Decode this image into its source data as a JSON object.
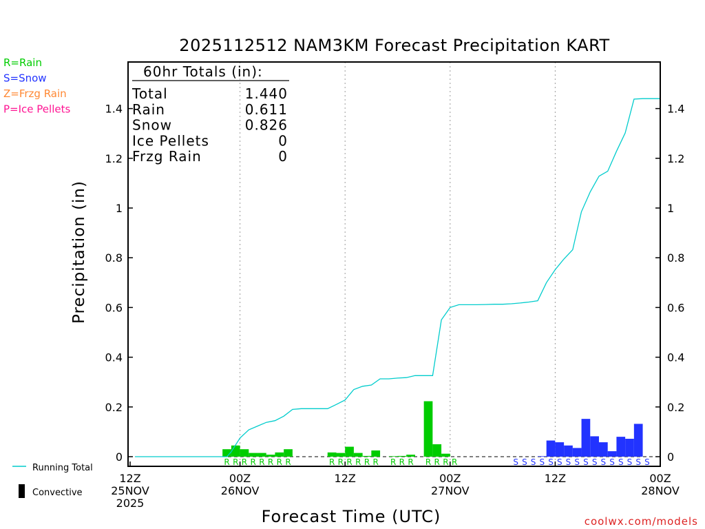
{
  "chart_data": {
    "type": "bar",
    "title": "2025112512 NAM3KM Forecast Precipitation KART",
    "xlabel": "Forecast Time (UTC)",
    "ylabel": "Precipitation (in)",
    "ylim": [
      -0.04,
      1.6
    ],
    "xlim": [
      0,
      60
    ],
    "yticks": [
      "0",
      "0.2",
      "0.4",
      "0.6",
      "0.8",
      "1",
      "1.2",
      "1.4"
    ],
    "yticks_right": [
      "0",
      "0.2",
      "0.4",
      "0.6",
      "0.8",
      "1",
      "1.2",
      "1.4"
    ],
    "ytick_values": [
      0,
      0.2,
      0.4,
      0.6,
      0.8,
      1.0,
      1.2,
      1.4
    ],
    "xticks": [
      {
        "hour": 0,
        "line1": "12Z",
        "line2": "25NOV",
        "line3": "2025"
      },
      {
        "hour": 12,
        "line1": "00Z",
        "line2": "26NOV",
        "line3": ""
      },
      {
        "hour": 24,
        "line1": "12Z",
        "line2": "",
        "line3": ""
      },
      {
        "hour": 36,
        "line1": "00Z",
        "line2": "27NOV",
        "line3": ""
      },
      {
        "hour": 48,
        "line1": "12Z",
        "line2": "",
        "line3": ""
      },
      {
        "hour": 60,
        "line1": "00Z",
        "line2": "28NOV",
        "line3": ""
      }
    ],
    "gridlines_hours": [
      12,
      24,
      36,
      48
    ],
    "legend_top": [
      {
        "label": "R=Rain",
        "color": "#00cc00"
      },
      {
        "label": "S=Snow",
        "color": "#2233ff"
      },
      {
        "label": "Z=Frzg Rain",
        "color": "#ff8833"
      },
      {
        "label": "P=Ice Pellets",
        "color": "#ff1493"
      }
    ],
    "legend_bottom": [
      {
        "label": "Running Total",
        "color": "#00cccc",
        "kind": "line"
      },
      {
        "label": "Convective",
        "color": "#000000",
        "kind": "bar"
      }
    ],
    "totals": {
      "header": "60hr Totals (in):",
      "rows": [
        {
          "label": "Total",
          "value": "1.440"
        },
        {
          "label": "Rain",
          "value": "0.611"
        },
        {
          "label": "Snow",
          "value": "0.826"
        },
        {
          "label": "Ice Pellets",
          "value": "0"
        },
        {
          "label": "Frzg Rain",
          "value": "0"
        }
      ]
    },
    "series": [
      {
        "name": "Rain",
        "color": "#00cc00",
        "type_letter": "R",
        "x": [
          11,
          12,
          13,
          14,
          15,
          16,
          17,
          18,
          23,
          24,
          25,
          26,
          27,
          28,
          30,
          31,
          32,
          34,
          35,
          36,
          37
        ],
        "values": [
          0.03,
          0.045,
          0.03,
          0.015,
          0.015,
          0.008,
          0.017,
          0.03,
          0.017,
          0.015,
          0.04,
          0.015,
          0.003,
          0.025,
          0.002,
          0.003,
          0.008,
          0.223,
          0.05,
          0.012,
          0.0
        ]
      },
      {
        "name": "Snow",
        "color": "#2233ff",
        "type_letter": "S",
        "x": [
          44,
          45,
          46,
          47,
          48,
          49,
          50,
          51,
          52,
          53,
          54,
          55,
          56,
          57,
          58,
          59
        ],
        "values": [
          0.0,
          0.0,
          0.0,
          0.002,
          0.065,
          0.058,
          0.045,
          0.035,
          0.152,
          0.082,
          0.058,
          0.022,
          0.08,
          0.072,
          0.132,
          0.0
        ]
      },
      {
        "name": "Running Total",
        "color": "#00cccc",
        "type": "line",
        "x": [
          0,
          10.5,
          11,
          12,
          13,
          14,
          15,
          16,
          17,
          18,
          19,
          20,
          21,
          22,
          23,
          24,
          25,
          26,
          27,
          28,
          29,
          30,
          31,
          32,
          33,
          34,
          35,
          36,
          37,
          38,
          39,
          40,
          41,
          42,
          43,
          44,
          45,
          46,
          47,
          48,
          49,
          50,
          51,
          52,
          53,
          54,
          55,
          56,
          57,
          58,
          59,
          60
        ],
        "values": [
          0,
          0,
          0.02,
          0.075,
          0.108,
          0.123,
          0.138,
          0.145,
          0.163,
          0.19,
          0.193,
          0.193,
          0.193,
          0.193,
          0.21,
          0.228,
          0.27,
          0.283,
          0.288,
          0.313,
          0.313,
          0.316,
          0.318,
          0.326,
          0.326,
          0.326,
          0.55,
          0.6,
          0.611,
          0.611,
          0.611,
          0.612,
          0.613,
          0.613,
          0.615,
          0.618,
          0.622,
          0.627,
          0.7,
          0.752,
          0.795,
          0.832,
          0.985,
          1.065,
          1.128,
          1.148,
          1.228,
          1.302,
          1.438,
          1.44,
          1.44,
          1.44
        ]
      }
    ],
    "watermark": "coolwx.com/models"
  }
}
